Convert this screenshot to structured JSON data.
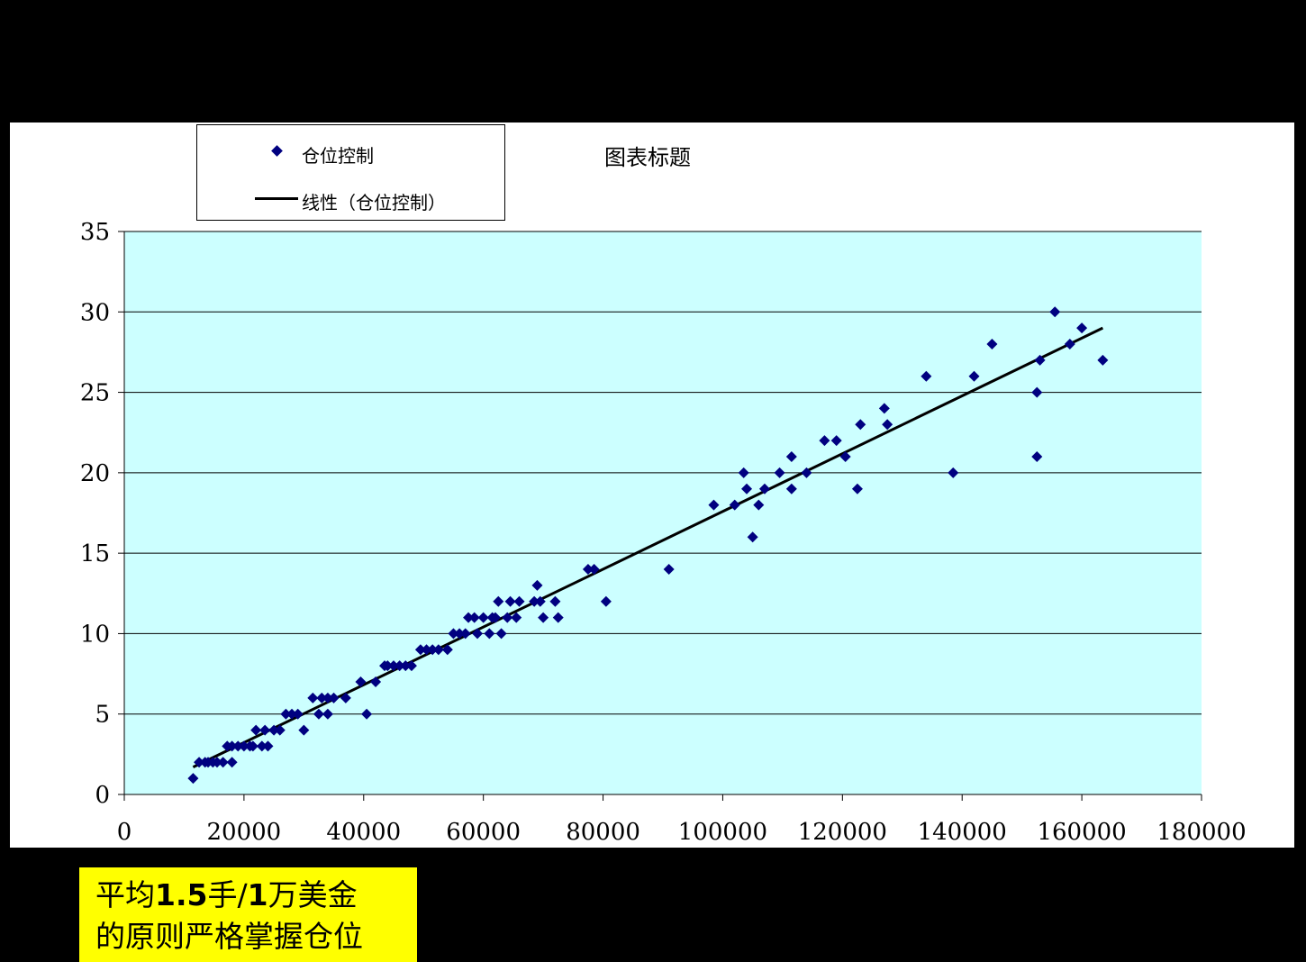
{
  "colors": {
    "slide_background": "#000000",
    "chart_area": "#ffffff",
    "plot_area": "#ccffff",
    "marker": "#000080",
    "trendline": "#000000",
    "callout_background": "#ffff00"
  },
  "callout": {
    "line1_prefix": "平均",
    "line1_bold": "1.5",
    "line1_mid": "手/",
    "line1_bold2": "1",
    "line1_suffix": "万美金",
    "line2": "的原则严格掌握仓位"
  },
  "chart_data": {
    "type": "scatter",
    "title": "图表标题",
    "xlabel": "",
    "ylabel": "",
    "xlim": [
      0,
      180000
    ],
    "ylim": [
      0,
      35
    ],
    "x_ticks": [
      0,
      20000,
      40000,
      60000,
      80000,
      100000,
      120000,
      140000,
      160000,
      180000
    ],
    "y_ticks": [
      0,
      5,
      10,
      15,
      20,
      25,
      30,
      35
    ],
    "grid": "horizontal",
    "legend_position": "top-left",
    "series": [
      {
        "name": "仓位控制",
        "marker": "diamond",
        "points": [
          [
            11500,
            1
          ],
          [
            12500,
            2
          ],
          [
            13500,
            2
          ],
          [
            14000,
            2
          ],
          [
            14800,
            2
          ],
          [
            15500,
            2
          ],
          [
            16500,
            2
          ],
          [
            17200,
            3
          ],
          [
            18000,
            2
          ],
          [
            18000,
            3
          ],
          [
            19000,
            3
          ],
          [
            20000,
            3
          ],
          [
            21000,
            3
          ],
          [
            21500,
            3
          ],
          [
            22000,
            4
          ],
          [
            23000,
            3
          ],
          [
            23500,
            4
          ],
          [
            24000,
            3
          ],
          [
            25000,
            4
          ],
          [
            26000,
            4
          ],
          [
            27000,
            5
          ],
          [
            28000,
            5
          ],
          [
            29000,
            5
          ],
          [
            30000,
            4
          ],
          [
            31500,
            6
          ],
          [
            32500,
            5
          ],
          [
            33000,
            6
          ],
          [
            34000,
            6
          ],
          [
            34000,
            5
          ],
          [
            35000,
            6
          ],
          [
            37000,
            6
          ],
          [
            39500,
            7
          ],
          [
            40500,
            5
          ],
          [
            42000,
            7
          ],
          [
            43500,
            8
          ],
          [
            44000,
            8
          ],
          [
            45000,
            8
          ],
          [
            46000,
            8
          ],
          [
            47000,
            8
          ],
          [
            48000,
            8
          ],
          [
            49500,
            9
          ],
          [
            50500,
            9
          ],
          [
            51500,
            9
          ],
          [
            52500,
            9
          ],
          [
            54000,
            9
          ],
          [
            55000,
            10
          ],
          [
            56000,
            10
          ],
          [
            57000,
            10
          ],
          [
            57500,
            11
          ],
          [
            58500,
            11
          ],
          [
            59000,
            10
          ],
          [
            60000,
            11
          ],
          [
            61000,
            10
          ],
          [
            61500,
            11
          ],
          [
            62000,
            11
          ],
          [
            62500,
            12
          ],
          [
            63000,
            10
          ],
          [
            64000,
            11
          ],
          [
            64500,
            12
          ],
          [
            65500,
            11
          ],
          [
            66000,
            12
          ],
          [
            68500,
            12
          ],
          [
            69000,
            13
          ],
          [
            69500,
            12
          ],
          [
            70000,
            11
          ],
          [
            72000,
            12
          ],
          [
            72500,
            11
          ],
          [
            77500,
            14
          ],
          [
            78500,
            14
          ],
          [
            80500,
            12
          ],
          [
            91000,
            14
          ],
          [
            98500,
            18
          ],
          [
            102000,
            18
          ],
          [
            103500,
            20
          ],
          [
            104000,
            19
          ],
          [
            105000,
            16
          ],
          [
            106000,
            18
          ],
          [
            107000,
            19
          ],
          [
            109500,
            20
          ],
          [
            111500,
            21
          ],
          [
            111500,
            19
          ],
          [
            114000,
            20
          ],
          [
            117000,
            22
          ],
          [
            119000,
            22
          ],
          [
            120500,
            21
          ],
          [
            122500,
            19
          ],
          [
            123000,
            23
          ],
          [
            127000,
            24
          ],
          [
            127500,
            23
          ],
          [
            134000,
            26
          ],
          [
            138500,
            20
          ],
          [
            142000,
            26
          ],
          [
            145000,
            28
          ],
          [
            152500,
            25
          ],
          [
            152500,
            21
          ],
          [
            153000,
            27
          ],
          [
            155500,
            30
          ],
          [
            158000,
            28
          ],
          [
            160000,
            29
          ],
          [
            163500,
            27
          ]
        ]
      },
      {
        "name": "线性（仓位控制）",
        "type": "line",
        "points": [
          [
            11500,
            1.7
          ],
          [
            163500,
            29
          ]
        ]
      }
    ]
  }
}
